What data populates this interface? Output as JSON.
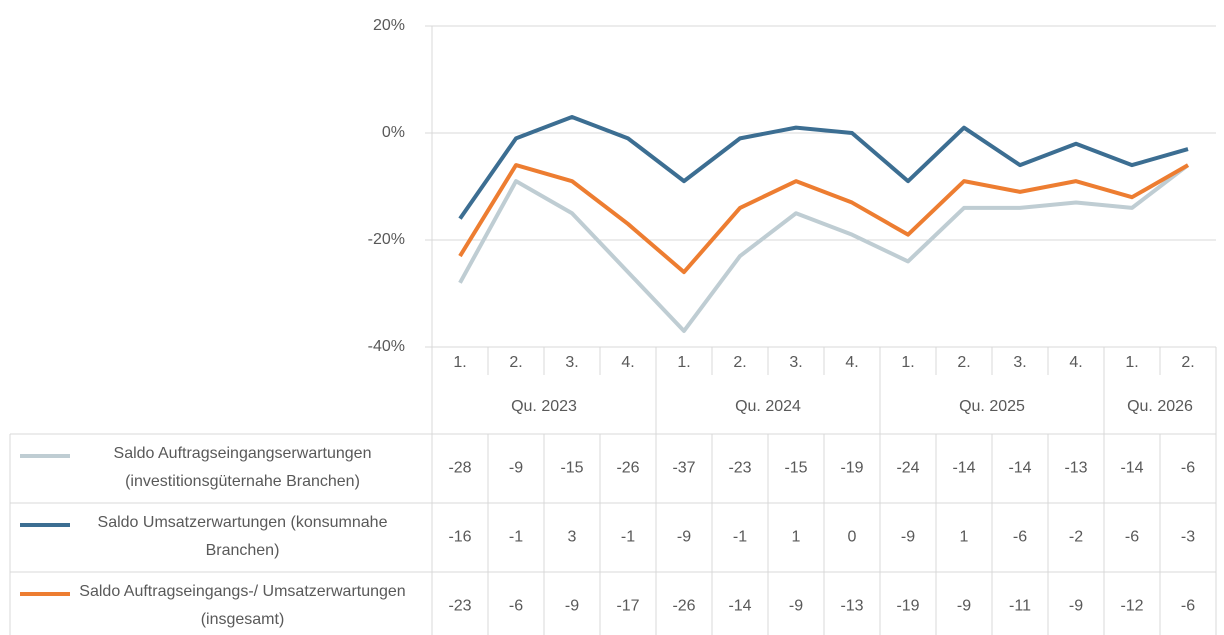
{
  "chart_data": {
    "type": "line",
    "groups": [
      {
        "label": "Qu. 2023",
        "categories": [
          "1.",
          "2.",
          "3.",
          "4."
        ]
      },
      {
        "label": "Qu. 2024",
        "categories": [
          "1.",
          "2.",
          "3.",
          "4."
        ]
      },
      {
        "label": "Qu. 2025",
        "categories": [
          "1.",
          "2.",
          "3.",
          "4."
        ]
      },
      {
        "label": "Qu. 2026",
        "categories": [
          "1.",
          "2."
        ]
      }
    ],
    "series": [
      {
        "name": "Saldo Auftragseingangserwartungen (investitionsgüternahe Branchen)",
        "color": "#bfcdd3",
        "values": [
          -28,
          -9,
          -15,
          -26,
          -37,
          -23,
          -15,
          -19,
          -24,
          -14,
          -14,
          -13,
          -14,
          -6
        ]
      },
      {
        "name": "Saldo Umsatzerwartungen (konsumnahe Branchen)",
        "color": "#3c6e92",
        "values": [
          -16,
          -1,
          3,
          -1,
          -9,
          -1,
          1,
          0,
          -9,
          1,
          -6,
          -2,
          -6,
          -3
        ]
      },
      {
        "name": "Saldo Auftragseingangs-/ Umsatzerwartungen (insgesamt)",
        "color": "#ed7d31",
        "values": [
          -23,
          -6,
          -9,
          -17,
          -26,
          -14,
          -9,
          -13,
          -19,
          -9,
          -11,
          -9,
          -12,
          -6
        ]
      }
    ],
    "ylim": [
      -40,
      20
    ],
    "yticks": [
      {
        "value": -40,
        "label": "-40%"
      },
      {
        "value": -20,
        "label": "-20%"
      },
      {
        "value": 0,
        "label": "0%"
      },
      {
        "value": 20,
        "label": "20%"
      }
    ],
    "grid": true
  }
}
